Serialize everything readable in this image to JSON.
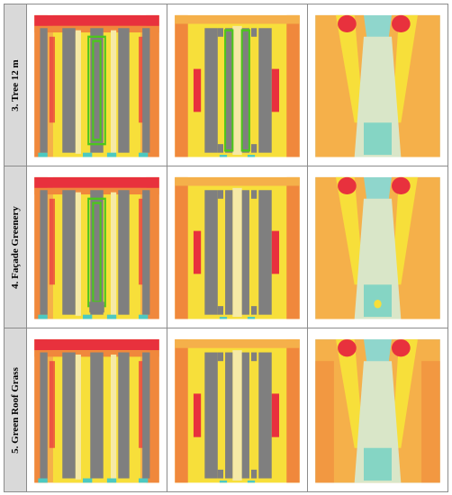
{
  "rows": [
    {
      "label": "3. Tree 12 m",
      "variant": "tree"
    },
    {
      "label": "4. Façade Greenery",
      "variant": "facade"
    },
    {
      "label": "5. Green Roof Grass",
      "variant": "roof"
    }
  ],
  "colors": {
    "building": "#7f7f7f",
    "greenery_outline": "#4cc61c",
    "hot_red": "#e8313d",
    "warm_orange": "#f0883c",
    "light_orange": "#f5b04a",
    "yellow": "#f7df3a",
    "pale_yellow": "#f5e9a6",
    "pale": "#d9e6c8",
    "cool_teal": "#4cc9c1",
    "light_teal": "#8fd6cc"
  }
}
